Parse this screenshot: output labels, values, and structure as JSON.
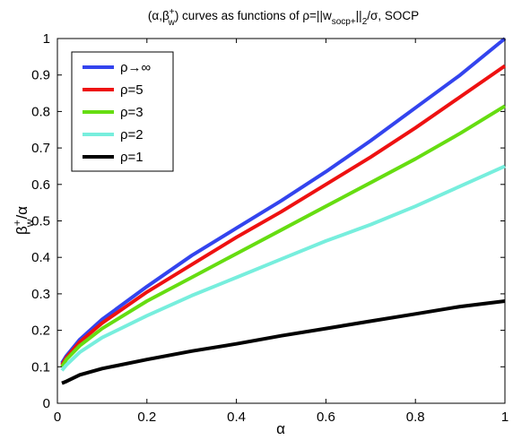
{
  "chart_data": {
    "type": "line",
    "title": {
      "pre": "(α,β",
      "sup": "+",
      "sub": "w",
      "mid": ") curves as functions of ρ=||w",
      "sub2": "socp+",
      "mid2": "||",
      "sub3": "2",
      "post": "/σ, SOCP"
    },
    "xlabel": "α",
    "ylabel": {
      "base": "β",
      "sup": "+",
      "sub": "w",
      "post": "/α"
    },
    "xlim": [
      0,
      1
    ],
    "ylim": [
      0,
      1
    ],
    "xticks": [
      0,
      0.2,
      0.4,
      0.6,
      0.8,
      1
    ],
    "xtick_labels": [
      "0",
      "0.2",
      "0.4",
      "0.6",
      "0.8",
      "1"
    ],
    "yticks": [
      0,
      0.1,
      0.2,
      0.3,
      0.4,
      0.5,
      0.6,
      0.7,
      0.8,
      0.9,
      1
    ],
    "ytick_labels": [
      "0",
      "0.1",
      "0.2",
      "0.3",
      "0.4",
      "0.5",
      "0.6",
      "0.7",
      "0.8",
      "0.9",
      "1"
    ],
    "grid": false,
    "legend_position": "top-left",
    "x": [
      0.01,
      0.02,
      0.05,
      0.1,
      0.2,
      0.3,
      0.4,
      0.5,
      0.6,
      0.7,
      0.8,
      0.9,
      1.0
    ],
    "series": [
      {
        "name": "ρ→∞",
        "color": "#3344ee",
        "values": [
          0.11,
          0.13,
          0.175,
          0.23,
          0.32,
          0.405,
          0.48,
          0.555,
          0.635,
          0.72,
          0.81,
          0.9,
          1.0
        ]
      },
      {
        "name": "ρ=5",
        "color": "#ee1111",
        "values": [
          0.105,
          0.125,
          0.168,
          0.22,
          0.305,
          0.38,
          0.455,
          0.525,
          0.6,
          0.675,
          0.755,
          0.84,
          0.925
        ]
      },
      {
        "name": "ρ=3",
        "color": "#66dd11",
        "values": [
          0.1,
          0.12,
          0.158,
          0.205,
          0.28,
          0.345,
          0.41,
          0.475,
          0.54,
          0.605,
          0.67,
          0.74,
          0.815
        ]
      },
      {
        "name": "ρ=2",
        "color": "#77eedd",
        "values": [
          0.09,
          0.105,
          0.14,
          0.18,
          0.24,
          0.295,
          0.345,
          0.395,
          0.445,
          0.49,
          0.54,
          0.595,
          0.65
        ]
      },
      {
        "name": "ρ=1",
        "color": "#000000",
        "values": [
          0.055,
          0.06,
          0.078,
          0.095,
          0.12,
          0.143,
          0.163,
          0.185,
          0.205,
          0.225,
          0.245,
          0.265,
          0.28
        ]
      }
    ]
  }
}
